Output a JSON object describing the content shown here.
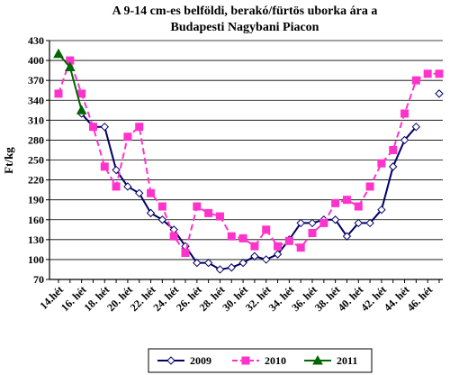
{
  "chart_data": {
    "type": "line",
    "title_lines": [
      "A 9-14 cm-es belföldi, berakó/fürtös uborka ára a",
      "Budapesti Nagybani Piacon"
    ],
    "ylabel": "Ft/kg",
    "xlabel": "",
    "ylim": [
      70,
      430
    ],
    "y_ticks": [
      70,
      100,
      130,
      160,
      190,
      220,
      250,
      280,
      310,
      340,
      370,
      400,
      430
    ],
    "grid": true,
    "legend_position": "bottom",
    "x_tick_labels": [
      "14.hét",
      "16. hét",
      "18. hét",
      "20. hét",
      "22. hét",
      "24. hét",
      "26. hét",
      "28. hét",
      "30. hét",
      "32. hét",
      "34. hét",
      "36. hét",
      "38. hét",
      "40. hét",
      "42. hét",
      "44. hét",
      "46. hét"
    ],
    "x_weeks": [
      14,
      15,
      16,
      17,
      18,
      19,
      20,
      21,
      22,
      23,
      24,
      25,
      26,
      27,
      28,
      29,
      30,
      31,
      32,
      33,
      34,
      35,
      36,
      37,
      38,
      39,
      40,
      41,
      42,
      43,
      44,
      45,
      46,
      47
    ],
    "series": [
      {
        "name": "2009",
        "color": "#000066",
        "marker": "diamond",
        "dashed": false,
        "values": [
          null,
          null,
          320,
          300,
          300,
          235,
          210,
          200,
          170,
          160,
          145,
          120,
          95,
          95,
          85,
          88,
          95,
          105,
          100,
          108,
          130,
          155,
          155,
          160,
          160,
          135,
          155,
          155,
          175,
          240,
          280,
          300,
          null,
          350
        ]
      },
      {
        "name": "2010",
        "color": "#FF33CC",
        "marker": "square",
        "dashed": true,
        "values": [
          350,
          400,
          350,
          300,
          240,
          210,
          285,
          300,
          200,
          180,
          135,
          110,
          180,
          170,
          165,
          135,
          132,
          120,
          145,
          120,
          128,
          118,
          140,
          155,
          185,
          190,
          180,
          210,
          245,
          265,
          320,
          370,
          380,
          380
        ]
      },
      {
        "name": "2011",
        "color": "#006600",
        "marker": "triangle",
        "dashed": false,
        "values": [
          410,
          390,
          325,
          null,
          null,
          null,
          null,
          null,
          null,
          null,
          null,
          null,
          null,
          null,
          null,
          null,
          null,
          null,
          null,
          null,
          null,
          null,
          null,
          null,
          null,
          null,
          null,
          null,
          null,
          null,
          null,
          null,
          null,
          null
        ]
      }
    ]
  }
}
